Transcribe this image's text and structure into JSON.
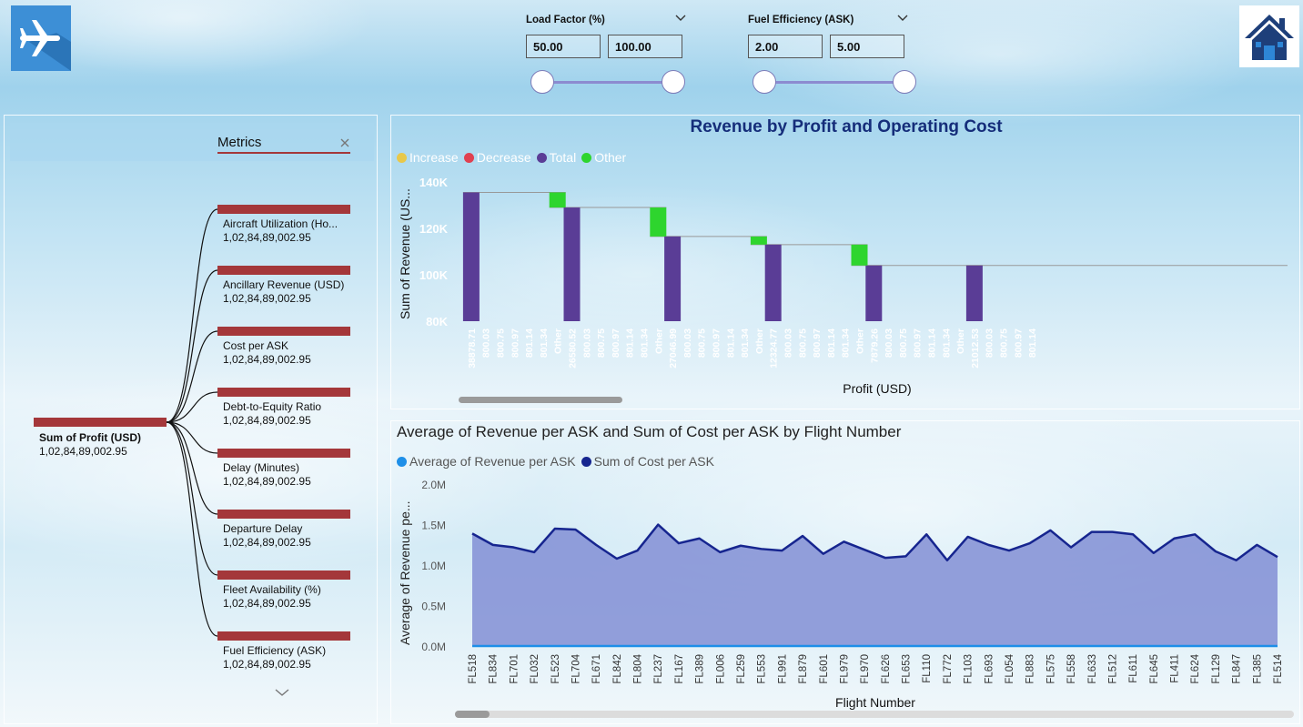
{
  "slicers": [
    {
      "title": "Load Factor (%)",
      "min": "50.00",
      "max": "100.00"
    },
    {
      "title": "Fuel Efficiency (ASK)",
      "min": "2.00",
      "max": "5.00"
    }
  ],
  "decomp_tree": {
    "header": "Metrics",
    "root": {
      "label": "Sum of Profit (USD)",
      "value": "1,02,84,89,002.95"
    },
    "nodes": [
      {
        "label": "Aircraft Utilization (Ho...",
        "value": "1,02,84,89,002.95"
      },
      {
        "label": "Ancillary Revenue (USD)",
        "value": "1,02,84,89,002.95"
      },
      {
        "label": "Cost per ASK",
        "value": "1,02,84,89,002.95"
      },
      {
        "label": "Debt-to-Equity Ratio",
        "value": "1,02,84,89,002.95"
      },
      {
        "label": "Delay (Minutes)",
        "value": "1,02,84,89,002.95"
      },
      {
        "label": "Departure Delay",
        "value": "1,02,84,89,002.95"
      },
      {
        "label": "Fleet Availability (%)",
        "value": "1,02,84,89,002.95"
      },
      {
        "label": "Fuel Efficiency (ASK)",
        "value": "1,02,84,89,002.95"
      }
    ]
  },
  "colors": {
    "bar_node": "#a4373a",
    "total": "#5a3d96",
    "other": "#2ed52e",
    "increase": "#e8c84a",
    "decrease": "#e04050",
    "line": "#16258f",
    "area": "#8a95d6",
    "line2": "#1e8fe8"
  },
  "chart_data": [
    {
      "type": "bar",
      "subtype": "waterfall",
      "title": "Revenue by Profit and Operating Cost",
      "xlabel": "Profit (USD)",
      "ylabel": "Sum of Revenue (US...",
      "ylim": [
        80000,
        140000
      ],
      "yticks": [
        "80K",
        "100K",
        "120K",
        "140K"
      ],
      "legend": [
        "Increase",
        "Decrease",
        "Total",
        "Other"
      ],
      "categories": [
        "38878.71",
        "800.03",
        "800.75",
        "800.97",
        "801.14",
        "801.34",
        "Other",
        "26580.52",
        "800.03",
        "800.75",
        "800.97",
        "801.14",
        "801.34",
        "Other",
        "27046.99",
        "800.03",
        "800.75",
        "800.97",
        "801.14",
        "801.34",
        "Other",
        "12324.77",
        "800.03",
        "800.75",
        "800.97",
        "801.14",
        "801.34",
        "Other",
        "7879.26",
        "800.03",
        "800.75",
        "800.97",
        "801.14",
        "801.34",
        "Other",
        "21012.53",
        "800.03",
        "800.75",
        "800.97",
        "801.14"
      ],
      "bars": [
        {
          "index": 0,
          "kind": "Total",
          "low": 80000,
          "high": 135500
        },
        {
          "index": 6,
          "kind": "Other",
          "low": 129000,
          "high": 135500
        },
        {
          "index": 7,
          "kind": "Total",
          "low": 80000,
          "high": 129000
        },
        {
          "index": 13,
          "kind": "Other",
          "low": 116500,
          "high": 129000
        },
        {
          "index": 14,
          "kind": "Total",
          "low": 80000,
          "high": 116500
        },
        {
          "index": 20,
          "kind": "Other",
          "low": 113000,
          "high": 116500
        },
        {
          "index": 21,
          "kind": "Total",
          "low": 80000,
          "high": 113000
        },
        {
          "index": 27,
          "kind": "Other",
          "low": 104000,
          "high": 113000
        },
        {
          "index": 28,
          "kind": "Total",
          "low": 80000,
          "high": 104000
        },
        {
          "index": 35,
          "kind": "Total",
          "low": 80000,
          "high": 104000
        }
      ]
    },
    {
      "type": "area",
      "title": "Average of Revenue per ASK and Sum of Cost per ASK by Flight Number",
      "xlabel": "Flight Number",
      "ylabel": "Average of Revenue pe...",
      "ylim": [
        0,
        2000000
      ],
      "yticks": [
        "0.0M",
        "0.5M",
        "1.0M",
        "1.5M",
        "2.0M"
      ],
      "categories": [
        "FL518",
        "FL834",
        "FL701",
        "FL032",
        "FL523",
        "FL704",
        "FL671",
        "FL842",
        "FL804",
        "FL237",
        "FL167",
        "FL389",
        "FL006",
        "FL259",
        "FL553",
        "FL991",
        "FL879",
        "FL601",
        "FL979",
        "FL970",
        "FL626",
        "FL653",
        "FL110",
        "FL772",
        "FL103",
        "FL693",
        "FL054",
        "FL883",
        "FL575",
        "FL558",
        "FL633",
        "FL512",
        "FL611",
        "FL645",
        "FL411",
        "FL624",
        "FL129",
        "FL847",
        "FL385",
        "FL514"
      ],
      "series": [
        {
          "name": "Average of Revenue per ASK",
          "values": [
            0,
            0,
            0,
            0,
            0,
            0,
            0,
            0,
            0,
            0,
            0,
            0,
            0,
            0,
            0,
            0,
            0,
            0,
            0,
            0,
            0,
            0,
            0,
            0,
            0,
            0,
            0,
            0,
            0,
            0,
            0,
            0,
            0,
            0,
            0,
            0,
            0,
            0,
            0,
            0
          ]
        },
        {
          "name": "Sum of Cost per ASK",
          "values": [
            1400000,
            1260000,
            1230000,
            1170000,
            1460000,
            1450000,
            1260000,
            1090000,
            1190000,
            1510000,
            1280000,
            1340000,
            1170000,
            1250000,
            1210000,
            1190000,
            1370000,
            1150000,
            1300000,
            1200000,
            1100000,
            1120000,
            1390000,
            1070000,
            1360000,
            1260000,
            1190000,
            1280000,
            1440000,
            1230000,
            1420000,
            1420000,
            1390000,
            1160000,
            1340000,
            1390000,
            1180000,
            1070000,
            1260000,
            1110000
          ]
        }
      ]
    }
  ]
}
